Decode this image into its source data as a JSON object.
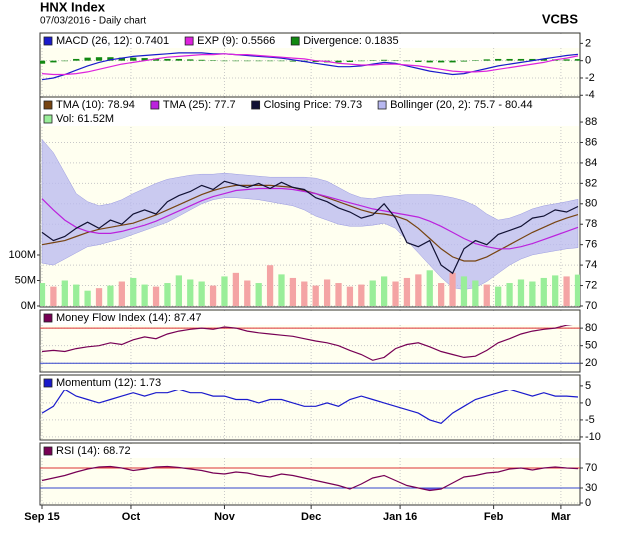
{
  "header": {
    "title": "HNX Index",
    "subtitle": "07/03/2016 - Daily chart",
    "brand": "VCBS"
  },
  "chart_data": [
    {
      "type": "line",
      "xlim": [
        0,
        47
      ],
      "ylim": [
        -4.2,
        3.2
      ],
      "yticks": [
        2,
        0,
        -2,
        -4
      ],
      "grid": true,
      "series": [
        {
          "name": "MACD (26, 12): 0.7401",
          "color": "#1a1acc",
          "mark": "line",
          "values": [
            -2.2,
            -2.0,
            -1.6,
            -1.1,
            -0.6,
            -0.2,
            0.1,
            0.3,
            0.5,
            0.6,
            0.7,
            0.8,
            0.9,
            0.9,
            0.9,
            0.8,
            0.8,
            0.7,
            0.6,
            0.5,
            0.4,
            0.3,
            0.1,
            -0.1,
            -0.3,
            -0.5,
            -0.7,
            -0.7,
            -0.6,
            -0.4,
            -0.2,
            -0.3,
            -0.6,
            -0.9,
            -1.2,
            -1.4,
            -1.6,
            -1.5,
            -1.2,
            -0.9,
            -0.6,
            -0.4,
            -0.2,
            0.0,
            0.2,
            0.4,
            0.6,
            0.74
          ]
        },
        {
          "name": "EXP (9): 0.5566",
          "color": "#dd22dd",
          "mark": "line",
          "values": [
            -1.5,
            -1.6,
            -1.6,
            -1.5,
            -1.3,
            -1.0,
            -0.7,
            -0.4,
            -0.2,
            0.0,
            0.2,
            0.4,
            0.5,
            0.6,
            0.7,
            0.7,
            0.8,
            0.7,
            0.7,
            0.6,
            0.5,
            0.4,
            0.3,
            0.2,
            0.0,
            -0.1,
            -0.3,
            -0.4,
            -0.5,
            -0.5,
            -0.4,
            -0.4,
            -0.5,
            -0.6,
            -0.8,
            -1.0,
            -1.2,
            -1.3,
            -1.3,
            -1.2,
            -1.0,
            -0.8,
            -0.6,
            -0.4,
            -0.2,
            0.1,
            0.3,
            0.5566
          ]
        },
        {
          "name": "Divergence: 0.1835",
          "color": "#118811",
          "mark": "bar",
          "values": [
            -0.35,
            -0.2,
            0,
            0.2,
            0.35,
            0.4,
            0.4,
            0.35,
            0.35,
            0.3,
            0.25,
            0.2,
            0.2,
            0.15,
            0.1,
            0.05,
            0,
            0,
            -0.05,
            -0.05,
            -0.05,
            -0.05,
            -0.1,
            -0.15,
            -0.15,
            -0.2,
            -0.2,
            -0.15,
            -0.05,
            0.05,
            0.1,
            0.05,
            -0.05,
            -0.15,
            -0.2,
            -0.2,
            -0.2,
            -0.1,
            0.05,
            0.15,
            0.2,
            0.2,
            0.2,
            0.2,
            0.2,
            0.15,
            0.15,
            0.1835
          ]
        }
      ]
    },
    {
      "type": "line",
      "xlim": [
        0,
        47
      ],
      "ylim": [
        69.9,
        90.45
      ],
      "yticks": [
        88,
        86,
        84,
        82,
        80,
        78,
        76,
        74,
        72,
        70
      ],
      "grid": true,
      "y2lim": [
        -2,
        410
      ],
      "y2ticks": [
        {
          "value": 0,
          "label": "0M"
        },
        {
          "value": 50,
          "label": "50M"
        },
        {
          "value": 100,
          "label": "100M"
        }
      ],
      "series": [
        {
          "name": "TMA (10): 78.94",
          "color": "#774411",
          "mark": "line",
          "values": [
            76.0,
            76.2,
            76.4,
            76.8,
            77.2,
            77.5,
            77.7,
            77.9,
            78.1,
            78.5,
            78.9,
            79.4,
            79.9,
            80.4,
            80.9,
            81.3,
            81.6,
            81.8,
            81.8,
            81.8,
            81.8,
            81.7,
            81.6,
            81.3,
            81.0,
            80.6,
            80.2,
            79.8,
            79.4,
            79.1,
            79.0,
            78.8,
            78.4,
            77.6,
            76.6,
            75.6,
            74.8,
            74.4,
            74.4,
            74.8,
            75.4,
            76.0,
            76.6,
            77.2,
            77.7,
            78.2,
            78.6,
            78.94
          ]
        },
        {
          "name": "TMA (25): 77.7",
          "color": "#bb22dd",
          "mark": "line",
          "values": [
            80.5,
            79.4,
            78.4,
            77.7,
            77.3,
            77.1,
            77.1,
            77.3,
            77.6,
            77.9,
            78.3,
            78.8,
            79.3,
            79.8,
            80.3,
            80.7,
            81.0,
            81.3,
            81.4,
            81.5,
            81.5,
            81.5,
            81.4,
            81.2,
            81.0,
            80.7,
            80.4,
            80.1,
            79.8,
            79.5,
            79.3,
            79.1,
            78.9,
            78.7,
            78.3,
            77.8,
            77.2,
            76.6,
            76.1,
            75.8,
            75.6,
            75.6,
            75.8,
            76.1,
            76.5,
            76.9,
            77.3,
            77.7
          ]
        },
        {
          "name": "Closing Price: 79.73",
          "color": "#111133",
          "mark": "line",
          "values": [
            77.2,
            76.4,
            76.8,
            77.6,
            78.2,
            77.6,
            78.4,
            78.0,
            79.0,
            79.4,
            79.0,
            80.2,
            80.8,
            81.2,
            81.8,
            81.4,
            82.2,
            81.9,
            81.6,
            82.0,
            81.5,
            82.1,
            81.6,
            81.4,
            80.6,
            80.2,
            79.6,
            79.2,
            78.6,
            78.9,
            80.0,
            78.6,
            76.2,
            75.8,
            76.4,
            74.0,
            73.2,
            75.6,
            76.4,
            76.0,
            77.0,
            77.4,
            77.8,
            78.6,
            78.8,
            79.4,
            79.2,
            79.73
          ]
        },
        {
          "name": "Bollinger (20, 2): 75.7 - 80.44",
          "color": "#b8b8f0",
          "mark": "band",
          "upper": [
            86.3,
            85.0,
            83.0,
            81.0,
            80.2,
            79.8,
            80.0,
            80.4,
            81.0,
            81.5,
            82.0,
            82.4,
            82.6,
            82.8,
            82.9,
            82.9,
            83.0,
            82.9,
            82.8,
            82.7,
            82.6,
            82.6,
            82.6,
            82.6,
            82.5,
            82.2,
            81.6,
            81.0,
            80.6,
            80.5,
            80.7,
            80.8,
            80.9,
            80.9,
            80.9,
            80.8,
            80.6,
            80.3,
            79.8,
            79.0,
            78.4,
            78.6,
            79.0,
            79.5,
            79.8,
            80.0,
            80.2,
            80.44
          ],
          "lower": [
            74.2,
            74.0,
            74.6,
            75.2,
            75.8,
            76.0,
            76.3,
            76.6,
            77.0,
            77.4,
            77.8,
            78.2,
            78.8,
            79.4,
            80.0,
            80.4,
            80.6,
            80.6,
            80.5,
            80.4,
            80.2,
            80.0,
            79.8,
            79.4,
            78.8,
            78.4,
            78.0,
            77.8,
            77.8,
            77.9,
            78.1,
            77.6,
            76.4,
            75.2,
            74.0,
            72.8,
            71.8,
            71.6,
            71.8,
            72.4,
            73.2,
            74.0,
            74.6,
            75.0,
            75.2,
            75.4,
            75.6,
            75.7
          ]
        },
        {
          "name": "Vol: 61.52M",
          "color": "#99ee99",
          "mark": "bar",
          "axis": "y2",
          "colors": [
            "#99ee99",
            "#f4a4a4",
            "#99ee99",
            "#99ee99",
            "#99ee99",
            "#f4a4a4",
            "#99ee99",
            "#f4a4a4",
            "#99ee99",
            "#99ee99",
            "#f4a4a4",
            "#99ee99",
            "#99ee99",
            "#99ee99",
            "#99ee99",
            "#f4a4a4",
            "#99ee99",
            "#f4a4a4",
            "#f4a4a4",
            "#99ee99",
            "#f4a4a4",
            "#99ee99",
            "#f4a4a4",
            "#f4a4a4",
            "#f4a4a4",
            "#f4a4a4",
            "#f4a4a4",
            "#f4a4a4",
            "#f4a4a4",
            "#99ee99",
            "#99ee99",
            "#f4a4a4",
            "#f4a4a4",
            "#f4a4a4",
            "#99ee99",
            "#f4a4a4",
            "#f4a4a4",
            "#99ee99",
            "#99ee99",
            "#f4a4a4",
            "#99ee99",
            "#99ee99",
            "#99ee99",
            "#99ee99",
            "#99ee99",
            "#99ee99",
            "#f4a4a4",
            "#99ee99"
          ],
          "values": [
            45,
            38,
            50,
            42,
            30,
            35,
            40,
            48,
            55,
            42,
            38,
            45,
            60,
            52,
            48,
            40,
            58,
            65,
            50,
            45,
            80,
            62,
            55,
            48,
            40,
            52,
            45,
            38,
            42,
            50,
            58,
            48,
            55,
            62,
            70,
            45,
            65,
            58,
            50,
            42,
            38,
            45,
            52,
            48,
            55,
            60,
            58,
            61.52
          ]
        }
      ]
    },
    {
      "type": "line",
      "xlim": [
        0,
        47
      ],
      "ylim": [
        5,
        111
      ],
      "yticks": [
        80,
        50,
        20
      ],
      "grid": true,
      "hlines": [
        {
          "value": 80,
          "color": "#dd3333"
        },
        {
          "value": 20,
          "color": "#3344cc"
        }
      ],
      "series": [
        {
          "name": "Money Flow Index (14): 87.47",
          "color": "#770055",
          "mark": "line",
          "values": [
            40,
            42,
            40,
            45,
            48,
            50,
            55,
            52,
            60,
            65,
            62,
            70,
            75,
            78,
            80,
            78,
            82,
            80,
            75,
            72,
            70,
            68,
            66,
            62,
            58,
            55,
            50,
            42,
            35,
            25,
            30,
            45,
            52,
            55,
            48,
            40,
            35,
            30,
            32,
            42,
            55,
            62,
            70,
            75,
            78,
            80,
            85,
            87.47
          ]
        }
      ]
    },
    {
      "type": "line",
      "xlim": [
        0,
        47
      ],
      "ylim": [
        -10.9,
        8.2
      ],
      "yticks": [
        5,
        0,
        -5,
        -10
      ],
      "grid": true,
      "series": [
        {
          "name": "Momentum (12): 1.73",
          "color": "#1a1acc",
          "mark": "line",
          "values": [
            -3,
            -1,
            4,
            2,
            1,
            0,
            1,
            2,
            3,
            2,
            3,
            3,
            4,
            3,
            3,
            2,
            2,
            1,
            1,
            0,
            1,
            1,
            0,
            -1,
            -1,
            0,
            -1,
            1,
            2,
            1,
            0,
            -1,
            -2,
            -3,
            -5,
            -6,
            -3,
            -1,
            1,
            2,
            3,
            4,
            3,
            2,
            3,
            2,
            2,
            1.73
          ]
        }
      ]
    },
    {
      "type": "line",
      "xlim": [
        0,
        47
      ],
      "ylim": [
        -4,
        120
      ],
      "yticks": [
        70,
        30,
        0
      ],
      "grid": true,
      "hlines": [
        {
          "value": 70,
          "color": "#dd3333",
          "fill": "#ee5566",
          "side": "above"
        },
        {
          "value": 30,
          "color": "#3344cc",
          "fill": "#7755dd",
          "side": "below"
        }
      ],
      "xticks": [
        {
          "value": 0,
          "label": "Sep 15"
        },
        {
          "value": 7.8,
          "label": "Oct"
        },
        {
          "value": 16,
          "label": "Nov"
        },
        {
          "value": 23.6,
          "label": "Dec"
        },
        {
          "value": 31.4,
          "label": "Jan 16"
        },
        {
          "value": 39.6,
          "label": "Feb"
        },
        {
          "value": 45.5,
          "label": "Mar"
        }
      ],
      "series": [
        {
          "name": "RSI (14): 68.72",
          "color": "#770055",
          "mark": "line",
          "values": [
            45,
            50,
            55,
            62,
            68,
            72,
            73,
            70,
            65,
            68,
            72,
            73,
            71,
            68,
            65,
            60,
            58,
            62,
            60,
            55,
            52,
            58,
            55,
            50,
            45,
            40,
            35,
            28,
            38,
            50,
            55,
            45,
            35,
            30,
            25,
            28,
            40,
            52,
            55,
            60,
            62,
            68,
            70,
            66,
            70,
            72,
            70,
            68.72
          ]
        }
      ]
    }
  ]
}
